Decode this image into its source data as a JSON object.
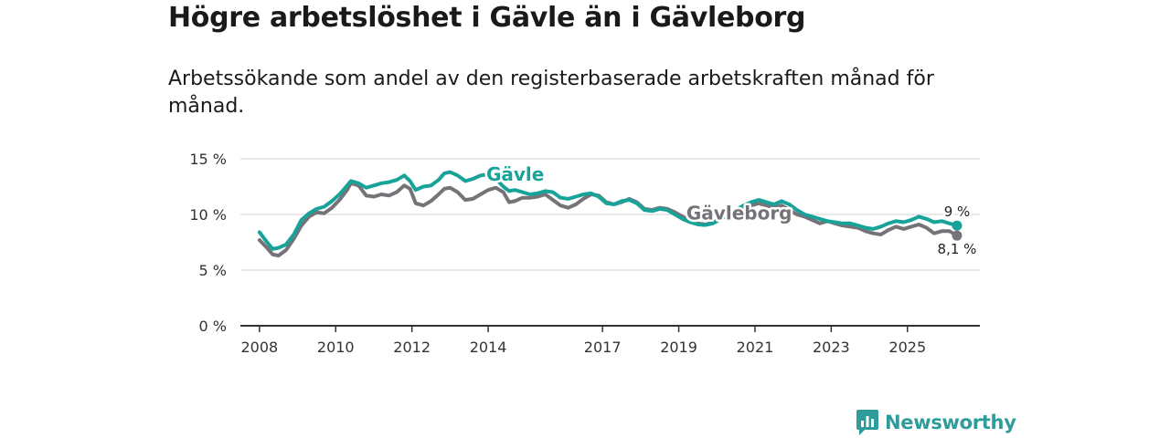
{
  "header": {
    "title": "Högre arbetslöshet i Gävle än i Gävleborg",
    "subtitle": "Arbetssökande som andel av den registerbaserade arbetskraften månad för månad."
  },
  "colors": {
    "gavle": "#18a39a",
    "gavleborg": "#757378",
    "grid": "#d9d9d9",
    "axis": "#333333",
    "brand": "#2e9c9a"
  },
  "chart_data": {
    "type": "line",
    "title": "Högre arbetslöshet i Gävle än i Gävleborg",
    "subtitle": "Arbetssökande som andel av den registerbaserade arbetskraften månad för månad.",
    "xlabel": "",
    "ylabel": "",
    "ylim": [
      0,
      15
    ],
    "xlim": [
      2007.5,
      2026.9
    ],
    "grid": true,
    "y_ticks": [
      {
        "value": 0,
        "label": "0 %"
      },
      {
        "value": 5,
        "label": "5 %"
      },
      {
        "value": 10,
        "label": "10 %"
      },
      {
        "value": 15,
        "label": "15 %"
      }
    ],
    "x_ticks": [
      {
        "value": 2008.0,
        "label": "2008"
      },
      {
        "value": 2010.0,
        "label": "2010"
      },
      {
        "value": 2012.0,
        "label": "2012"
      },
      {
        "value": 2014.0,
        "label": "2014"
      },
      {
        "value": 2017.0,
        "label": "2017"
      },
      {
        "value": 2019.0,
        "label": "2019"
      },
      {
        "value": 2021.0,
        "label": "2021"
      },
      {
        "value": 2023.0,
        "label": "2023"
      },
      {
        "value": 2025.0,
        "label": "2025"
      }
    ],
    "series": [
      {
        "name": "Gävle",
        "key": "gavle",
        "label": "Gävle",
        "end_label": "9 %",
        "end_value": 9.0,
        "points": [
          [
            2008.0,
            8.4
          ],
          [
            2008.2,
            7.5
          ],
          [
            2008.35,
            6.9
          ],
          [
            2008.5,
            7.0
          ],
          [
            2008.7,
            7.3
          ],
          [
            2008.9,
            8.2
          ],
          [
            2009.1,
            9.5
          ],
          [
            2009.3,
            10.1
          ],
          [
            2009.5,
            10.5
          ],
          [
            2009.7,
            10.7
          ],
          [
            2009.9,
            11.2
          ],
          [
            2010.1,
            11.8
          ],
          [
            2010.3,
            12.6
          ],
          [
            2010.4,
            13.0
          ],
          [
            2010.6,
            12.8
          ],
          [
            2010.8,
            12.4
          ],
          [
            2011.0,
            12.6
          ],
          [
            2011.2,
            12.8
          ],
          [
            2011.4,
            12.9
          ],
          [
            2011.6,
            13.1
          ],
          [
            2011.8,
            13.5
          ],
          [
            2011.95,
            13.0
          ],
          [
            2012.1,
            12.2
          ],
          [
            2012.3,
            12.5
          ],
          [
            2012.5,
            12.6
          ],
          [
            2012.7,
            13.1
          ],
          [
            2012.85,
            13.7
          ],
          [
            2013.0,
            13.8
          ],
          [
            2013.2,
            13.5
          ],
          [
            2013.4,
            13.0
          ],
          [
            2013.6,
            13.2
          ],
          [
            2013.8,
            13.5
          ],
          [
            2014.0,
            13.6
          ],
          [
            2014.2,
            13.2
          ],
          [
            2014.4,
            12.5
          ],
          [
            2014.55,
            12.1
          ],
          [
            2014.7,
            12.2
          ],
          [
            2014.9,
            12.0
          ],
          [
            2015.1,
            11.8
          ],
          [
            2015.3,
            11.9
          ],
          [
            2015.5,
            12.1
          ],
          [
            2015.7,
            12.0
          ],
          [
            2015.9,
            11.5
          ],
          [
            2016.1,
            11.4
          ],
          [
            2016.3,
            11.6
          ],
          [
            2016.5,
            11.8
          ],
          [
            2016.7,
            11.9
          ],
          [
            2016.9,
            11.6
          ],
          [
            2017.1,
            11.0
          ],
          [
            2017.3,
            10.9
          ],
          [
            2017.5,
            11.2
          ],
          [
            2017.7,
            11.3
          ],
          [
            2017.9,
            11.0
          ],
          [
            2018.1,
            10.4
          ],
          [
            2018.3,
            10.3
          ],
          [
            2018.5,
            10.5
          ],
          [
            2018.7,
            10.4
          ],
          [
            2018.9,
            10.0
          ],
          [
            2019.1,
            9.6
          ],
          [
            2019.3,
            9.3
          ],
          [
            2019.5,
            9.1
          ],
          [
            2019.7,
            9.05
          ],
          [
            2019.9,
            9.2
          ],
          [
            2020.1,
            9.6
          ],
          [
            2020.3,
            10.0
          ],
          [
            2020.5,
            10.4
          ],
          [
            2020.7,
            10.8
          ],
          [
            2020.9,
            11.1
          ],
          [
            2021.1,
            11.3
          ],
          [
            2021.3,
            11.1
          ],
          [
            2021.5,
            10.9
          ],
          [
            2021.7,
            11.2
          ],
          [
            2021.9,
            10.9
          ],
          [
            2022.1,
            10.4
          ],
          [
            2022.3,
            10.0
          ],
          [
            2022.5,
            9.8
          ],
          [
            2022.7,
            9.6
          ],
          [
            2022.9,
            9.4
          ],
          [
            2023.1,
            9.3
          ],
          [
            2023.3,
            9.2
          ],
          [
            2023.5,
            9.2
          ],
          [
            2023.7,
            9.0
          ],
          [
            2023.9,
            8.8
          ],
          [
            2024.1,
            8.7
          ],
          [
            2024.3,
            8.9
          ],
          [
            2024.5,
            9.2
          ],
          [
            2024.7,
            9.4
          ],
          [
            2024.9,
            9.3
          ],
          [
            2025.1,
            9.5
          ],
          [
            2025.3,
            9.8
          ],
          [
            2025.5,
            9.6
          ],
          [
            2025.7,
            9.3
          ],
          [
            2025.9,
            9.4
          ],
          [
            2026.1,
            9.2
          ],
          [
            2026.3,
            9.0
          ]
        ]
      },
      {
        "name": "Gävleborg",
        "key": "gavleborg",
        "label": "Gävleborg",
        "end_label": "8,1 %",
        "end_value": 8.1,
        "points": [
          [
            2008.0,
            7.7
          ],
          [
            2008.2,
            7.0
          ],
          [
            2008.35,
            6.4
          ],
          [
            2008.5,
            6.3
          ],
          [
            2008.7,
            6.8
          ],
          [
            2008.9,
            7.8
          ],
          [
            2009.1,
            9.0
          ],
          [
            2009.3,
            9.8
          ],
          [
            2009.5,
            10.2
          ],
          [
            2009.7,
            10.1
          ],
          [
            2009.9,
            10.6
          ],
          [
            2010.1,
            11.3
          ],
          [
            2010.3,
            12.2
          ],
          [
            2010.4,
            12.8
          ],
          [
            2010.6,
            12.6
          ],
          [
            2010.8,
            11.7
          ],
          [
            2011.0,
            11.6
          ],
          [
            2011.2,
            11.8
          ],
          [
            2011.4,
            11.7
          ],
          [
            2011.6,
            12.0
          ],
          [
            2011.8,
            12.6
          ],
          [
            2011.95,
            12.3
          ],
          [
            2012.1,
            11.0
          ],
          [
            2012.3,
            10.8
          ],
          [
            2012.5,
            11.2
          ],
          [
            2012.7,
            11.8
          ],
          [
            2012.85,
            12.3
          ],
          [
            2013.0,
            12.4
          ],
          [
            2013.2,
            12.0
          ],
          [
            2013.4,
            11.3
          ],
          [
            2013.6,
            11.4
          ],
          [
            2013.8,
            11.8
          ],
          [
            2014.0,
            12.2
          ],
          [
            2014.2,
            12.4
          ],
          [
            2014.4,
            12.0
          ],
          [
            2014.55,
            11.1
          ],
          [
            2014.7,
            11.2
          ],
          [
            2014.9,
            11.5
          ],
          [
            2015.1,
            11.5
          ],
          [
            2015.3,
            11.6
          ],
          [
            2015.5,
            11.8
          ],
          [
            2015.7,
            11.3
          ],
          [
            2015.9,
            10.8
          ],
          [
            2016.1,
            10.6
          ],
          [
            2016.3,
            10.9
          ],
          [
            2016.5,
            11.4
          ],
          [
            2016.7,
            11.8
          ],
          [
            2016.9,
            11.7
          ],
          [
            2017.1,
            11.1
          ],
          [
            2017.3,
            10.9
          ],
          [
            2017.5,
            11.1
          ],
          [
            2017.7,
            11.4
          ],
          [
            2017.9,
            11.1
          ],
          [
            2018.1,
            10.5
          ],
          [
            2018.3,
            10.4
          ],
          [
            2018.5,
            10.6
          ],
          [
            2018.7,
            10.5
          ],
          [
            2018.9,
            10.2
          ],
          [
            2019.1,
            9.8
          ],
          [
            2019.3,
            9.5
          ],
          [
            2019.5,
            9.2
          ],
          [
            2019.7,
            9.1
          ],
          [
            2019.9,
            9.3
          ],
          [
            2020.1,
            9.6
          ],
          [
            2020.3,
            10.0
          ],
          [
            2020.5,
            10.4
          ],
          [
            2020.7,
            10.6
          ],
          [
            2020.9,
            10.8
          ],
          [
            2021.1,
            11.0
          ],
          [
            2021.3,
            10.8
          ],
          [
            2021.5,
            10.6
          ],
          [
            2021.7,
            10.8
          ],
          [
            2021.9,
            10.4
          ],
          [
            2022.1,
            10.0
          ],
          [
            2022.3,
            9.8
          ],
          [
            2022.5,
            9.5
          ],
          [
            2022.7,
            9.2
          ],
          [
            2022.9,
            9.4
          ],
          [
            2023.1,
            9.2
          ],
          [
            2023.3,
            9.0
          ],
          [
            2023.5,
            8.9
          ],
          [
            2023.7,
            8.8
          ],
          [
            2023.9,
            8.5
          ],
          [
            2024.1,
            8.3
          ],
          [
            2024.3,
            8.2
          ],
          [
            2024.5,
            8.6
          ],
          [
            2024.7,
            8.9
          ],
          [
            2024.9,
            8.7
          ],
          [
            2025.1,
            8.9
          ],
          [
            2025.3,
            9.1
          ],
          [
            2025.5,
            8.8
          ],
          [
            2025.7,
            8.3
          ],
          [
            2025.9,
            8.5
          ],
          [
            2026.1,
            8.5
          ],
          [
            2026.3,
            8.1
          ]
        ]
      }
    ]
  },
  "footer": {
    "brand": "Newsworthy",
    "logo_icon": "newsworthy-chart-icon"
  }
}
